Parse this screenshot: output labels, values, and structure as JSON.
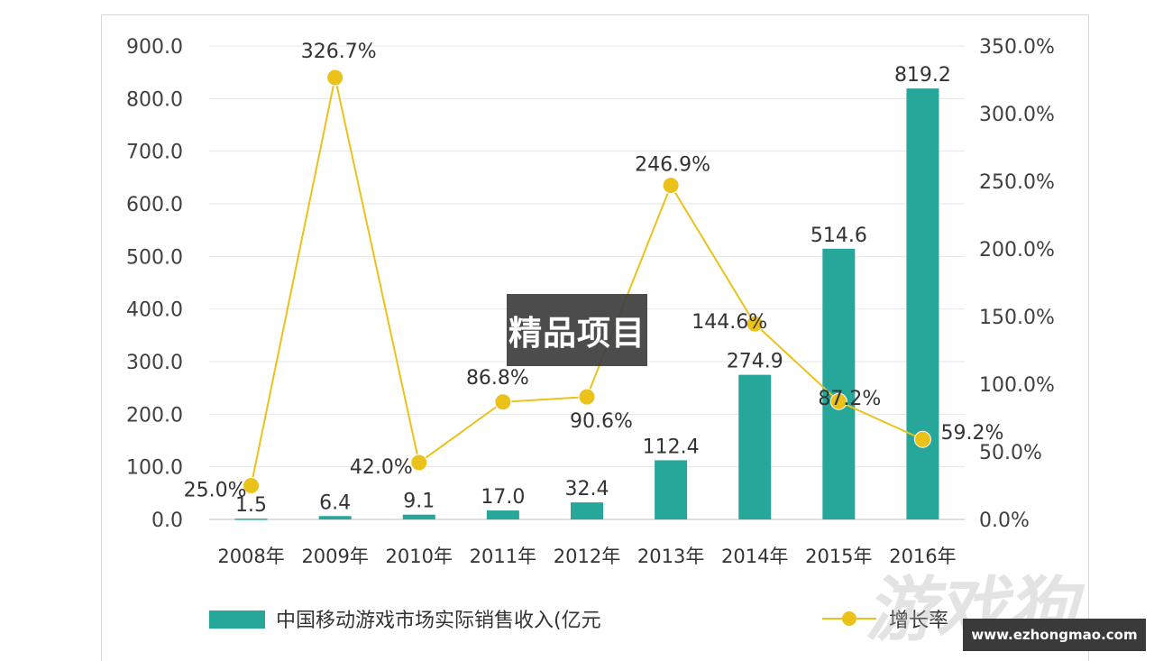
{
  "chart_data": {
    "type": "bar",
    "categories": [
      "2008年",
      "2009年",
      "2010年",
      "2011年",
      "2012年",
      "2013年",
      "2014年",
      "2015年",
      "2016年"
    ],
    "series": [
      {
        "name": "中国移动游戏市场实际销售收入(亿元",
        "type": "bar",
        "axis": "left",
        "values": [
          1.5,
          6.4,
          9.1,
          17.0,
          32.4,
          112.4,
          274.9,
          514.6,
          819.2
        ],
        "labels": [
          "1.5",
          "6.4",
          "9.1",
          "17.0",
          "32.4",
          "112.4",
          "274.9",
          "514.6",
          "819.2"
        ],
        "color": "#26A79A"
      },
      {
        "name": "增长率",
        "type": "line",
        "axis": "right",
        "values": [
          25.0,
          326.7,
          42.0,
          86.8,
          90.6,
          246.9,
          144.6,
          87.2,
          59.2
        ],
        "labels": [
          "25.0%",
          "326.7%",
          "42.0%",
          "86.8%",
          "90.6%",
          "246.9%",
          "144.6%",
          "87.2%",
          "59.2%"
        ],
        "color": "#EAC21A"
      }
    ],
    "y_left": {
      "min": 0,
      "max": 900,
      "ticks": [
        "0.0",
        "100.0",
        "200.0",
        "300.0",
        "400.0",
        "500.0",
        "600.0",
        "700.0",
        "800.0",
        "900.0"
      ]
    },
    "y_right": {
      "min": 0,
      "max": 350,
      "ticks": [
        "0.0%",
        "50.0%",
        "100.0%",
        "150.0%",
        "200.0%",
        "250.0%",
        "300.0%",
        "350.0%"
      ]
    },
    "grid": true,
    "legend_position": "bottom"
  },
  "overlay": {
    "text": "精品项目"
  },
  "watermark": {
    "text": "游戏狗",
    "url": "www.ezhongmao.com"
  }
}
